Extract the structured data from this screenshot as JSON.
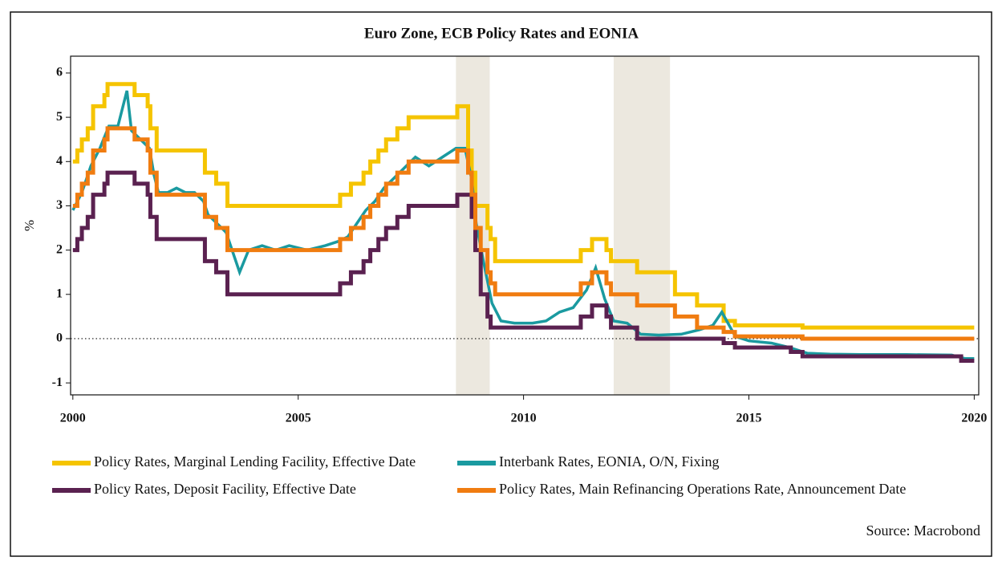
{
  "chart_data": {
    "type": "line",
    "title": "Euro Zone, ECB Policy Rates and EONIA",
    "y_label": "%",
    "source": "Source: Macrobond",
    "xlim": [
      1999.95,
      2020.1
    ],
    "ylim": [
      -1.27,
      6.38
    ],
    "xticks": [
      2000,
      2005,
      2010,
      2015,
      2020
    ],
    "yticks": [
      -1,
      0,
      1,
      2,
      3,
      4,
      5,
      6
    ],
    "zero_line": true,
    "shaded_regions": [
      [
        2008.5,
        2009.25
      ],
      [
        2012.0,
        2013.25
      ]
    ],
    "shade_color": "#ece8df",
    "series": [
      {
        "name": "Policy Rates, Marginal Lending Facility, Effective Date",
        "color": "#f5c400",
        "step": true,
        "x": [
          2000.0,
          2000.1,
          2000.2,
          2000.33,
          2000.45,
          2000.7,
          2000.77,
          2001.37,
          2001.66,
          2001.72,
          2001.86,
          2002.93,
          2003.18,
          2003.43,
          2005.93,
          2006.17,
          2006.45,
          2006.6,
          2006.78,
          2006.95,
          2007.2,
          2007.45,
          2008.53,
          2008.77,
          2008.85,
          2008.93,
          2009.05,
          2009.2,
          2009.27,
          2009.37,
          2011.27,
          2011.52,
          2011.84,
          2011.94,
          2012.52,
          2013.36,
          2013.85,
          2014.44,
          2014.69,
          2016.19,
          2020.0
        ],
        "values": [
          4.0,
          4.25,
          4.5,
          4.75,
          5.25,
          5.5,
          5.75,
          5.5,
          5.25,
          4.75,
          4.25,
          3.75,
          3.5,
          3.0,
          3.25,
          3.5,
          3.75,
          4.0,
          4.25,
          4.5,
          4.75,
          5.0,
          5.25,
          4.25,
          3.75,
          3.0,
          3.0,
          2.5,
          2.25,
          1.75,
          2.0,
          2.25,
          2.0,
          1.75,
          1.5,
          1.0,
          0.75,
          0.4,
          0.3,
          0.25,
          0.25
        ]
      },
      {
        "name": "Interbank Rates, EONIA, O/N, Fixing",
        "color": "#1a9aa0",
        "step": false,
        "x": [
          2000.0,
          2000.2,
          2000.4,
          2000.6,
          2000.8,
          2001.0,
          2001.2,
          2001.3,
          2001.5,
          2001.7,
          2001.8,
          2001.9,
          2002.1,
          2002.3,
          2002.5,
          2002.7,
          2002.9,
          2003.0,
          2003.2,
          2003.4,
          2003.5,
          2003.7,
          2003.9,
          2004.2,
          2004.5,
          2004.8,
          2005.2,
          2005.6,
          2005.9,
          2006.1,
          2006.3,
          2006.5,
          2006.7,
          2006.9,
          2007.1,
          2007.4,
          2007.6,
          2007.9,
          2008.2,
          2008.5,
          2008.7,
          2008.85,
          2008.95,
          2009.1,
          2009.3,
          2009.5,
          2009.8,
          2010.2,
          2010.5,
          2010.8,
          2011.1,
          2011.4,
          2011.6,
          2011.8,
          2012.0,
          2012.3,
          2012.6,
          2013.0,
          2013.5,
          2013.9,
          2014.2,
          2014.4,
          2014.7,
          2015.0,
          2015.5,
          2015.9,
          2016.3,
          2016.8,
          2017.5,
          2018.5,
          2019.5,
          2019.8,
          2020.0
        ],
        "values": [
          2.9,
          3.3,
          3.9,
          4.3,
          4.8,
          4.8,
          5.6,
          4.7,
          4.5,
          4.3,
          3.7,
          3.3,
          3.3,
          3.4,
          3.3,
          3.3,
          3.1,
          2.8,
          2.6,
          2.4,
          2.1,
          1.5,
          2.0,
          2.1,
          2.0,
          2.1,
          2.0,
          2.1,
          2.2,
          2.3,
          2.6,
          2.9,
          3.1,
          3.4,
          3.6,
          3.9,
          4.1,
          3.9,
          4.1,
          4.3,
          4.3,
          3.6,
          2.6,
          1.8,
          0.8,
          0.4,
          0.35,
          0.35,
          0.4,
          0.6,
          0.7,
          1.1,
          1.6,
          0.9,
          0.4,
          0.35,
          0.1,
          0.08,
          0.1,
          0.2,
          0.3,
          0.6,
          0.05,
          -0.05,
          -0.1,
          -0.2,
          -0.33,
          -0.35,
          -0.36,
          -0.36,
          -0.37,
          -0.45,
          -0.45
        ]
      },
      {
        "name": "Policy Rates, Deposit Facility, Effective Date",
        "color": "#5a2150",
        "step": true,
        "x": [
          2000.0,
          2000.1,
          2000.2,
          2000.33,
          2000.45,
          2000.7,
          2000.77,
          2001.37,
          2001.66,
          2001.72,
          2001.86,
          2002.93,
          2003.18,
          2003.43,
          2005.93,
          2006.17,
          2006.45,
          2006.6,
          2006.78,
          2006.95,
          2007.2,
          2007.45,
          2008.53,
          2008.77,
          2008.85,
          2008.93,
          2009.05,
          2009.2,
          2009.27,
          2009.37,
          2011.27,
          2011.52,
          2011.84,
          2011.94,
          2012.52,
          2013.36,
          2013.85,
          2014.44,
          2014.69,
          2015.93,
          2016.19,
          2019.71,
          2020.0
        ],
        "values": [
          2.0,
          2.25,
          2.5,
          2.75,
          3.25,
          3.5,
          3.75,
          3.5,
          3.25,
          2.75,
          2.25,
          1.75,
          1.5,
          1.0,
          1.25,
          1.5,
          1.75,
          2.0,
          2.25,
          2.5,
          2.75,
          3.0,
          3.25,
          3.25,
          2.75,
          2.0,
          1.0,
          0.5,
          0.25,
          0.25,
          0.5,
          0.75,
          0.5,
          0.25,
          0.0,
          0.0,
          0.0,
          -0.1,
          -0.2,
          -0.3,
          -0.4,
          -0.5,
          -0.5
        ]
      },
      {
        "name": "Policy Rates, Main Refinancing Operations Rate, Announcement Date",
        "color": "#f07c10",
        "step": true,
        "x": [
          2000.0,
          2000.1,
          2000.2,
          2000.33,
          2000.45,
          2000.7,
          2000.77,
          2001.37,
          2001.66,
          2001.72,
          2001.86,
          2002.93,
          2003.18,
          2003.43,
          2005.93,
          2006.17,
          2006.45,
          2006.6,
          2006.78,
          2006.95,
          2007.2,
          2007.45,
          2008.53,
          2008.77,
          2008.85,
          2008.93,
          2009.05,
          2009.2,
          2009.27,
          2009.37,
          2011.27,
          2011.52,
          2011.84,
          2011.94,
          2012.52,
          2013.36,
          2013.85,
          2014.44,
          2014.69,
          2016.19,
          2020.0
        ],
        "values": [
          3.0,
          3.25,
          3.5,
          3.75,
          4.25,
          4.5,
          4.75,
          4.5,
          4.25,
          3.75,
          3.25,
          2.75,
          2.5,
          2.0,
          2.25,
          2.5,
          2.75,
          3.0,
          3.25,
          3.5,
          3.75,
          4.0,
          4.25,
          3.75,
          3.25,
          2.5,
          2.0,
          1.5,
          1.25,
          1.0,
          1.25,
          1.5,
          1.25,
          1.0,
          0.75,
          0.5,
          0.25,
          0.15,
          0.05,
          0.0,
          0.0
        ]
      }
    ]
  }
}
